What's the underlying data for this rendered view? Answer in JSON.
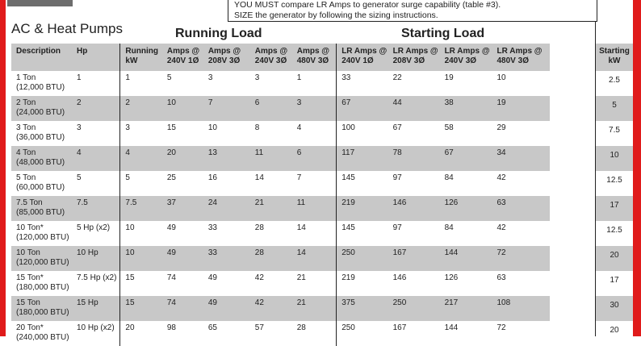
{
  "note": {
    "line1": "YOU MUST compare LR Amps to generator surge capability (table #3).",
    "line2": "SIZE the generator by following  the sizing instructions."
  },
  "title": "AC & Heat Pumps",
  "groups": {
    "running": "Running Load",
    "starting": "Starting Load"
  },
  "headers": [
    "Description",
    "Hp",
    "Running kW",
    "Amps @ 240V 1Ø",
    "Amps @ 208V 3Ø",
    "Amps @ 240V 3Ø",
    "Amps @ 480V 3Ø",
    "LR Amps @ 240V 1Ø",
    "LR Amps @ 208V 3Ø",
    "LR Amps @ 240V 3Ø",
    "LR Amps @ 480V 3Ø"
  ],
  "side_header": "Starting kW",
  "rows": [
    {
      "desc": [
        "1 Ton",
        "(12,000 BTU)"
      ],
      "hp": "1",
      "vals": [
        "1",
        "5",
        "3",
        "3",
        "1",
        "33",
        "22",
        "19",
        "10"
      ],
      "start_kw": "2.5"
    },
    {
      "desc": [
        "2 Ton",
        "(24,000 BTU)"
      ],
      "hp": "2",
      "vals": [
        "2",
        "10",
        "7",
        "6",
        "3",
        "67",
        "44",
        "38",
        "19"
      ],
      "start_kw": "5"
    },
    {
      "desc": [
        "3 Ton",
        "(36,000 BTU)"
      ],
      "hp": "3",
      "vals": [
        "3",
        "15",
        "10",
        "8",
        "4",
        "100",
        "67",
        "58",
        "29"
      ],
      "start_kw": "7.5"
    },
    {
      "desc": [
        "4 Ton",
        "(48,000 BTU)"
      ],
      "hp": "4",
      "vals": [
        "4",
        "20",
        "13",
        "11",
        "6",
        "117",
        "78",
        "67",
        "34"
      ],
      "start_kw": "10"
    },
    {
      "desc": [
        "5 Ton",
        "(60,000 BTU)"
      ],
      "hp": "5",
      "vals": [
        "5",
        "25",
        "16",
        "14",
        "7",
        "145",
        "97",
        "84",
        "42"
      ],
      "start_kw": "12.5"
    },
    {
      "desc": [
        "7.5 Ton",
        "(85,000 BTU)"
      ],
      "hp": "7.5",
      "vals": [
        "7.5",
        "37",
        "24",
        "21",
        "11",
        "219",
        "146",
        "126",
        "63"
      ],
      "start_kw": "17"
    },
    {
      "desc": [
        "10 Ton*",
        "(120,000 BTU)"
      ],
      "hp": "5 Hp (x2)",
      "vals": [
        "10",
        "49",
        "33",
        "28",
        "14",
        "145",
        "97",
        "84",
        "42"
      ],
      "start_kw": "12.5"
    },
    {
      "desc": [
        "10 Ton",
        "(120,000 BTU)"
      ],
      "hp": "10 Hp",
      "vals": [
        "10",
        "49",
        "33",
        "28",
        "14",
        "250",
        "167",
        "144",
        "72"
      ],
      "start_kw": "20"
    },
    {
      "desc": [
        "15 Ton*",
        "(180,000 BTU)"
      ],
      "hp": "7.5 Hp (x2)",
      "vals": [
        "15",
        "74",
        "49",
        "42",
        "21",
        "219",
        "146",
        "126",
        "63"
      ],
      "start_kw": "17"
    },
    {
      "desc": [
        "15 Ton",
        "(180,000 BTU)"
      ],
      "hp": "15 Hp",
      "vals": [
        "15",
        "74",
        "49",
        "42",
        "21",
        "375",
        "250",
        "217",
        "108"
      ],
      "start_kw": "30"
    },
    {
      "desc": [
        "20 Ton*",
        "(240,000 BTU)"
      ],
      "hp": "10 Hp (x2)",
      "vals": [
        "20",
        "98",
        "65",
        "57",
        "28",
        "250",
        "167",
        "144",
        "72"
      ],
      "start_kw": "20"
    }
  ]
}
